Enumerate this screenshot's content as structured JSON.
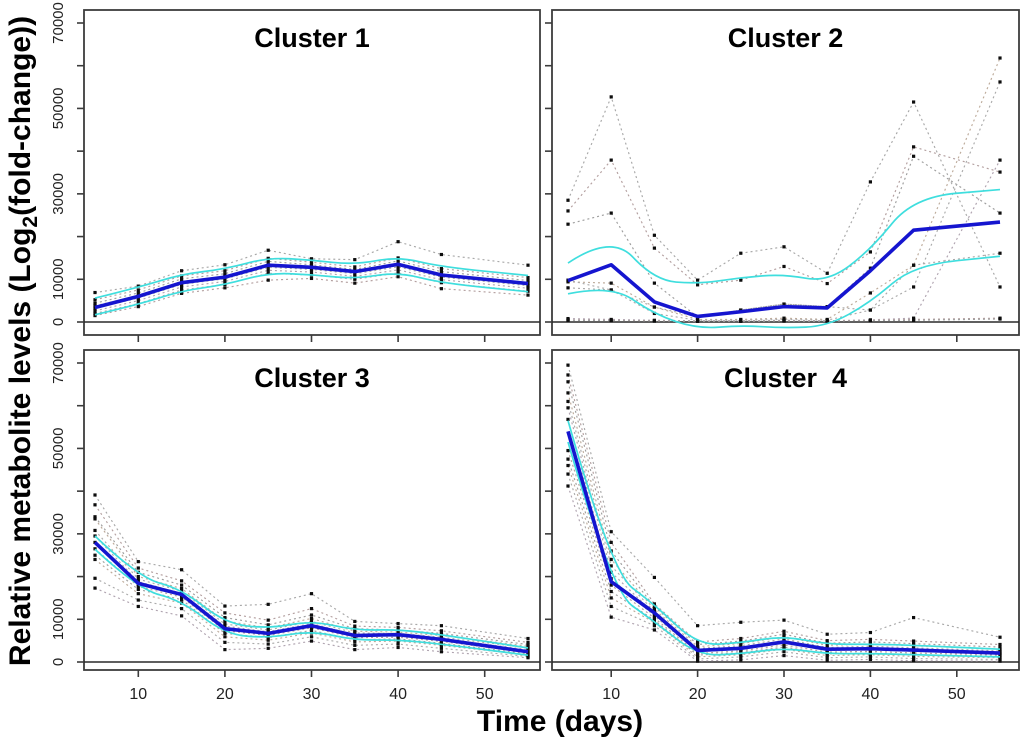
{
  "figure": {
    "x_axis_label": "Time (days)",
    "y_axis_label": {
      "prefix": "Relative metabolite levels (Log",
      "sub": "2",
      "suffix": "(fold-change))"
    },
    "y_ticks": {
      "labeled": [
        0,
        10000,
        30000,
        50000,
        70000
      ],
      "all": [
        0,
        10000,
        20000,
        30000,
        40000,
        50000,
        60000,
        70000
      ]
    },
    "x_ticks": [
      10,
      20,
      30,
      40,
      50
    ],
    "colors": {
      "mean_line": "#1515cf",
      "sd_line": "#3fdede",
      "point": "#0d0d0d",
      "trace_palette": [
        "#a8a8a8",
        "#b39f9f",
        "#9e9e9e",
        "#bdab9b",
        "#ababab",
        "#b0a4b0"
      ],
      "axis": "#3c3c3c",
      "zero_line": "#2a2a2a",
      "tick_label": "#222222",
      "title": "#000000",
      "background": "#ffffff"
    }
  },
  "chart_data": [
    {
      "type": "line",
      "title": "Cluster 1",
      "x": [
        5,
        10,
        15,
        20,
        25,
        30,
        35,
        40,
        45,
        55
      ],
      "ylim": [
        0,
        70000
      ],
      "xlim": [
        5,
        55
      ],
      "legend": "none",
      "series": {
        "mean": [
          3400,
          6000,
          9200,
          10500,
          13300,
          12800,
          11800,
          13500,
          11000,
          9000
        ],
        "sd_upper": [
          5600,
          8100,
          11200,
          12400,
          15100,
          14500,
          13400,
          15300,
          12900,
          10900
        ],
        "sd_lower": [
          1700,
          4100,
          7300,
          8700,
          11500,
          11100,
          10100,
          11700,
          9100,
          7100
        ],
        "traces": [
          [
            6900,
            8400,
            12000,
            13400,
            16800,
            14800,
            14600,
            18800,
            15800,
            13300
          ],
          [
            5200,
            7500,
            10800,
            12000,
            14900,
            14000,
            12900,
            15000,
            12500,
            10400
          ],
          [
            4400,
            6800,
            10100,
            11300,
            14200,
            13400,
            12300,
            14300,
            11800,
            9700
          ],
          [
            3800,
            6200,
            9500,
            10700,
            13500,
            12900,
            11900,
            13600,
            11100,
            9100
          ],
          [
            3200,
            5600,
            8800,
            10100,
            12800,
            12300,
            11300,
            12900,
            10500,
            8500
          ],
          [
            2600,
            5000,
            8200,
            9500,
            12100,
            11700,
            10700,
            12200,
            9900,
            7900
          ],
          [
            2000,
            4300,
            7500,
            8800,
            11400,
            11000,
            10000,
            11500,
            9200,
            7200
          ],
          [
            1500,
            3600,
            6700,
            8000,
            9800,
            10200,
            9100,
            10600,
            7800,
            6300
          ]
        ]
      }
    },
    {
      "type": "line",
      "title": "Cluster 2",
      "x": [
        5,
        10,
        15,
        20,
        25,
        30,
        35,
        40,
        45,
        55
      ],
      "ylim": [
        0,
        70000
      ],
      "xlim": [
        5,
        55
      ],
      "legend": "none",
      "series": {
        "mean": [
          9700,
          13400,
          4700,
          1300,
          2400,
          3600,
          3300,
          12000,
          21500,
          23400
        ],
        "sd_upper": [
          13800,
          20600,
          9800,
          8900,
          10400,
          11200,
          9300,
          16800,
          29300,
          31000
        ],
        "sd_lower": [
          6600,
          8700,
          1800,
          -1600,
          -800,
          -1400,
          -1000,
          4600,
          13300,
          15400
        ],
        "traces": [
          [
            28500,
            52700,
            20300,
            9800,
            16100,
            17600,
            11400,
            32800,
            51500,
            8200
          ],
          [
            26000,
            37900,
            17300,
            8700,
            9800,
            13000,
            9000,
            16400,
            41000,
            35100
          ],
          [
            22900,
            25500,
            9100,
            1200,
            2800,
            4200,
            3600,
            12600,
            38800,
            25500
          ],
          [
            9400,
            9100,
            3500,
            600,
            600,
            900,
            600,
            6800,
            13300,
            61800
          ],
          [
            9800,
            7500,
            2000,
            400,
            400,
            600,
            400,
            2800,
            8200,
            56200
          ],
          [
            800,
            600,
            400,
            300,
            300,
            400,
            300,
            500,
            900,
            37900
          ],
          [
            8000,
            7500,
            3500,
            1200,
            2800,
            4200,
            3600,
            2800,
            13300,
            16100
          ],
          [
            500,
            400,
            300,
            200,
            200,
            300,
            200,
            400,
            600,
            900
          ],
          [
            400,
            300,
            200,
            150,
            150,
            200,
            150,
            300,
            400,
            700
          ]
        ]
      }
    },
    {
      "type": "line",
      "title": "Cluster 3",
      "x": [
        5,
        10,
        15,
        20,
        25,
        30,
        35,
        40,
        45,
        55
      ],
      "ylim": [
        0,
        70000
      ],
      "xlim": [
        5,
        55
      ],
      "legend": "none",
      "series": {
        "mean": [
          28000,
          18400,
          15800,
          7800,
          6700,
          8500,
          6200,
          6400,
          5300,
          2400
        ],
        "sd_upper": [
          29500,
          19800,
          17100,
          9100,
          7800,
          9700,
          7400,
          7600,
          6400,
          3300
        ],
        "sd_lower": [
          26400,
          17000,
          14400,
          6500,
          5600,
          7300,
          5100,
          5200,
          4200,
          1600
        ],
        "traces": [
          [
            39100,
            23500,
            21600,
            13100,
            13500,
            16000,
            9500,
            9000,
            8500,
            5500
          ],
          [
            36800,
            22000,
            19000,
            11500,
            9800,
            12500,
            8400,
            8100,
            7300,
            4600
          ],
          [
            34000,
            21000,
            18000,
            10400,
            8700,
            11000,
            7800,
            7500,
            6700,
            4100
          ],
          [
            33500,
            20000,
            17200,
            9600,
            8000,
            10200,
            7200,
            7000,
            6200,
            3700
          ],
          [
            30800,
            19400,
            16600,
            8900,
            7500,
            9500,
            6800,
            6700,
            5800,
            3300
          ],
          [
            29500,
            18800,
            16100,
            8400,
            7100,
            9000,
            6400,
            6400,
            5500,
            2900
          ],
          [
            28000,
            18300,
            15700,
            7900,
            6700,
            8500,
            6100,
            6100,
            5200,
            2500
          ],
          [
            26500,
            17700,
            15200,
            7300,
            6200,
            8000,
            5700,
            5800,
            4800,
            2200
          ],
          [
            25000,
            17000,
            14600,
            6700,
            5700,
            7400,
            5200,
            5400,
            4400,
            1900
          ],
          [
            24000,
            16000,
            13800,
            5900,
            5100,
            6800,
            4700,
            4900,
            3900,
            1600
          ],
          [
            19600,
            14500,
            12500,
            4600,
            4200,
            5900,
            3900,
            4200,
            3200,
            1300
          ],
          [
            17300,
            13000,
            10800,
            2900,
            3200,
            4900,
            2900,
            3400,
            2400,
            1000
          ]
        ]
      }
    },
    {
      "type": "line",
      "title": "Cluster  4",
      "x": [
        5,
        10,
        15,
        20,
        25,
        30,
        35,
        40,
        45,
        55
      ],
      "ylim": [
        0,
        70000
      ],
      "xlim": [
        5,
        55
      ],
      "legend": "none",
      "series": {
        "mean": [
          54000,
          18800,
          11500,
          2700,
          3200,
          4700,
          3000,
          3100,
          2800,
          2100
        ],
        "sd_upper": [
          56500,
          21000,
          13500,
          3900,
          4500,
          6100,
          4100,
          4200,
          3900,
          3000
        ],
        "sd_lower": [
          51500,
          16600,
          9500,
          1500,
          1900,
          3300,
          1900,
          2000,
          1700,
          1200
        ],
        "traces": [
          [
            69500,
            30500,
            19800,
            8500,
            9300,
            9800,
            6500,
            6900,
            10400,
            5800
          ],
          [
            67200,
            28000,
            13600,
            4700,
            5500,
            7200,
            5000,
            5300,
            4900,
            4100
          ],
          [
            65600,
            26000,
            12900,
            4100,
            4900,
            6500,
            4400,
            4700,
            4300,
            3500
          ],
          [
            63000,
            24000,
            12300,
            3600,
            4300,
            5900,
            3900,
            4200,
            3800,
            3000
          ],
          [
            61000,
            22500,
            11800,
            3200,
            3800,
            5400,
            3400,
            3700,
            3300,
            2600
          ],
          [
            59500,
            21000,
            11300,
            2800,
            3400,
            4900,
            3000,
            3300,
            2900,
            2300
          ],
          [
            56800,
            19500,
            10800,
            2400,
            3000,
            4500,
            2700,
            2900,
            2500,
            2000
          ],
          [
            49500,
            18000,
            10300,
            2000,
            2600,
            4000,
            2300,
            2500,
            2100,
            1700
          ],
          [
            47500,
            16500,
            9800,
            1600,
            2200,
            3500,
            1900,
            2100,
            1700,
            1400
          ],
          [
            46000,
            15000,
            9200,
            1200,
            1700,
            3000,
            1500,
            1700,
            1300,
            1000
          ],
          [
            44000,
            13000,
            8500,
            700,
            1200,
            2400,
            1000,
            1200,
            800,
            600
          ],
          [
            41200,
            10500,
            7500,
            200,
            500,
            1500,
            400,
            600,
            300,
            200
          ]
        ]
      }
    }
  ]
}
